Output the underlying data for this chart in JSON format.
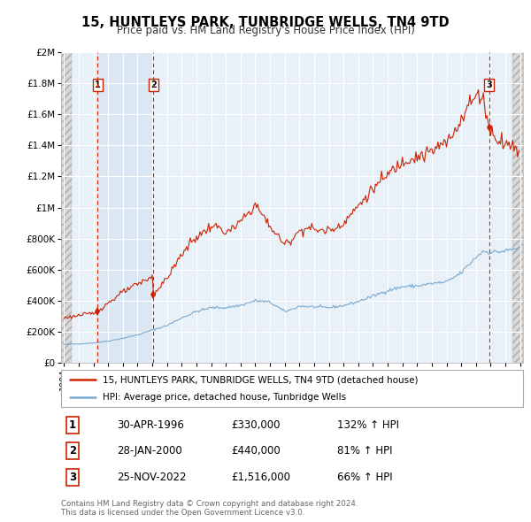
{
  "title": "15, HUNTLEYS PARK, TUNBRIDGE WELLS, TN4 9TD",
  "subtitle": "Price paid vs. HM Land Registry's House Price Index (HPI)",
  "legend_line1": "15, HUNTLEYS PARK, TUNBRIDGE WELLS, TN4 9TD (detached house)",
  "legend_line2": "HPI: Average price, detached house, Tunbridge Wells",
  "footnote1": "Contains HM Land Registry data © Crown copyright and database right 2024.",
  "footnote2": "This data is licensed under the Open Government Licence v3.0.",
  "transactions": [
    {
      "num": 1,
      "date": "30-APR-1996",
      "price": 330000,
      "hpi_pct": "132% ↑ HPI",
      "x": 1996.29
    },
    {
      "num": 2,
      "date": "28-JAN-2000",
      "price": 440000,
      "hpi_pct": "81% ↑ HPI",
      "x": 2000.07
    },
    {
      "num": 3,
      "date": "25-NOV-2022",
      "price": 1516000,
      "hpi_pct": "66% ↑ HPI",
      "x": 2022.9
    }
  ],
  "ylim": [
    0,
    2000000
  ],
  "xlim_left": 1993.8,
  "xlim_right": 2025.2,
  "hatch_left_end": 1994.5,
  "hatch_right_start": 2024.5,
  "plot_bg": "#e8f0f8",
  "grid_color": "#ffffff",
  "red_color": "#cc2200",
  "blue_color": "#7aaad0",
  "tx_bg_color": "#dce8f5",
  "ytick_vals": [
    0,
    200000,
    400000,
    600000,
    800000,
    1000000,
    1200000,
    1400000,
    1600000,
    1800000,
    2000000
  ],
  "ytick_labels": [
    "£0",
    "£200K",
    "£400K",
    "£600K",
    "£800K",
    "£1M",
    "£1.2M",
    "£1.4M",
    "£1.6M",
    "£1.8M",
    "£2M"
  ]
}
